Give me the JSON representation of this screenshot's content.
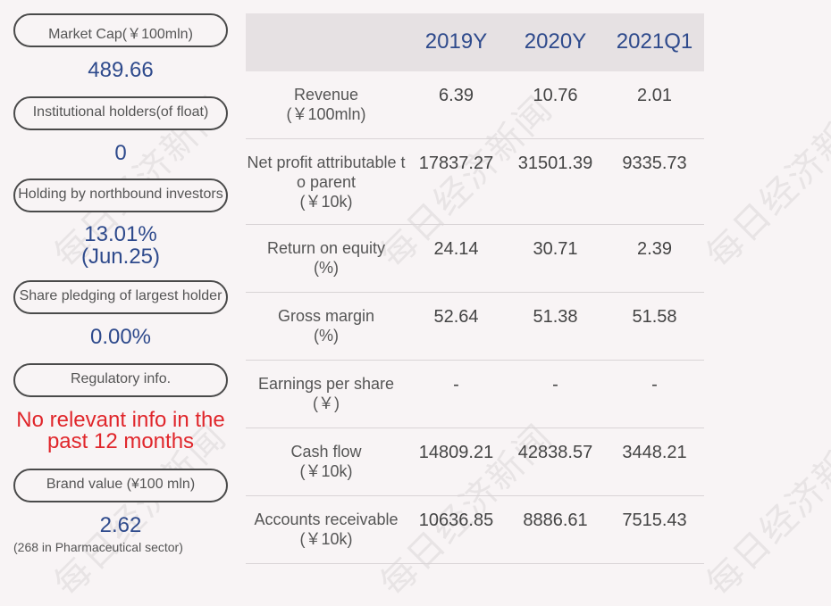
{
  "left": {
    "market_cap_label": "Market Cap(￥100mln)",
    "market_cap_value": "489.66",
    "institutional_label": "Institutional holders(of float)",
    "institutional_value": "0",
    "northbound_label": "Holding by northbound investors",
    "northbound_value": "13.01%",
    "northbound_date": "(Jun.25)",
    "pledging_label": "Share pledging of largest holder",
    "pledging_value": "0.00%",
    "regulatory_label": "Regulatory info.",
    "regulatory_line1": "No relevant info in the",
    "regulatory_line2": "past 12 months",
    "brand_label": "Brand value (¥100 mln)",
    "brand_value": "2.62",
    "brand_note": "(268 in Pharmaceutical sector)"
  },
  "table": {
    "headers": [
      "2019Y",
      "2020Y",
      "2021Q1"
    ],
    "rows": [
      {
        "line1": "Revenue",
        "line2": "(￥100mln)",
        "line3": "",
        "v": [
          "6.39",
          "10.76",
          "2.01"
        ]
      },
      {
        "line1": "Net profit attributable t",
        "line2": "o parent",
        "line3": "(￥10k)",
        "v": [
          "17837.27",
          "31501.39",
          "9335.73"
        ]
      },
      {
        "line1": "Return on equity",
        "line2": "(%)",
        "line3": "",
        "v": [
          "24.14",
          "30.71",
          "2.39"
        ]
      },
      {
        "line1": "Gross margin",
        "line2": "(%)",
        "line3": "",
        "v": [
          "52.64",
          "51.38",
          "51.58"
        ]
      },
      {
        "line1": "Earnings per share",
        "line2": "(￥)",
        "line3": "",
        "v": [
          "-",
          "-",
          "-"
        ]
      },
      {
        "line1": "Cash flow",
        "line2": "(￥10k)",
        "line3": "",
        "v": [
          "14809.21",
          "42838.57",
          "3448.21"
        ]
      },
      {
        "line1": "Accounts receivable",
        "line2": "(￥10k)",
        "line3": "",
        "v": [
          "10636.85",
          "8886.61",
          "7515.43"
        ]
      }
    ]
  },
  "watermark": "每日经济新闻"
}
